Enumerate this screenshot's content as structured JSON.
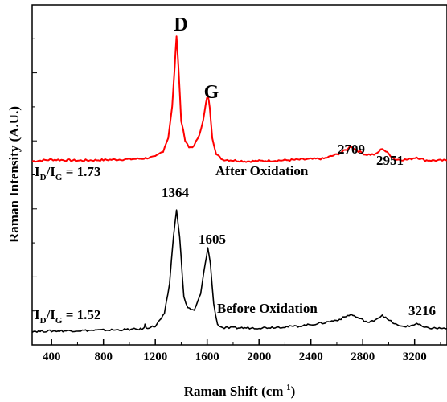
{
  "chart_data": {
    "type": "line",
    "xlabel": "Raman Shift (cm",
    "xlabel_sup": "-1",
    "xlabel_end": ")",
    "ylabel": "Raman Intensity (A.U.)",
    "xlim": [
      250,
      3450
    ],
    "ylim": [
      0,
      1
    ],
    "xticks": [
      400,
      800,
      1200,
      1600,
      2000,
      2400,
      2800,
      3200
    ],
    "series": [
      {
        "name": "After Oxidation",
        "color": "#ff0000",
        "baseline": 0.54,
        "points": [
          [
            250,
            0.54
          ],
          [
            400,
            0.545
          ],
          [
            600,
            0.542
          ],
          [
            800,
            0.544
          ],
          [
            1000,
            0.546
          ],
          [
            1100,
            0.548
          ],
          [
            1200,
            0.553
          ],
          [
            1260,
            0.57
          ],
          [
            1300,
            0.61
          ],
          [
            1330,
            0.7
          ],
          [
            1350,
            0.82
          ],
          [
            1364,
            0.91
          ],
          [
            1378,
            0.82
          ],
          [
            1400,
            0.66
          ],
          [
            1430,
            0.6
          ],
          [
            1460,
            0.58
          ],
          [
            1500,
            0.585
          ],
          [
            1540,
            0.62
          ],
          [
            1570,
            0.66
          ],
          [
            1590,
            0.71
          ],
          [
            1605,
            0.735
          ],
          [
            1620,
            0.7
          ],
          [
            1640,
            0.61
          ],
          [
            1670,
            0.56
          ],
          [
            1720,
            0.545
          ],
          [
            1900,
            0.54
          ],
          [
            2200,
            0.543
          ],
          [
            2500,
            0.548
          ],
          [
            2600,
            0.56
          ],
          [
            2680,
            0.575
          ],
          [
            2709,
            0.585
          ],
          [
            2740,
            0.575
          ],
          [
            2820,
            0.56
          ],
          [
            2900,
            0.56
          ],
          [
            2951,
            0.578
          ],
          [
            2990,
            0.565
          ],
          [
            3050,
            0.545
          ],
          [
            3150,
            0.545
          ],
          [
            3216,
            0.552
          ],
          [
            3280,
            0.543
          ],
          [
            3450,
            0.542
          ]
        ]
      },
      {
        "name": "Before Oxidation",
        "color": "#000000",
        "baseline": 0.04,
        "points": [
          [
            250,
            0.04
          ],
          [
            600,
            0.042
          ],
          [
            900,
            0.044
          ],
          [
            1050,
            0.046
          ],
          [
            1110,
            0.047
          ],
          [
            1120,
            0.06
          ],
          [
            1130,
            0.05
          ],
          [
            1200,
            0.055
          ],
          [
            1270,
            0.09
          ],
          [
            1310,
            0.18
          ],
          [
            1340,
            0.32
          ],
          [
            1364,
            0.395
          ],
          [
            1388,
            0.32
          ],
          [
            1420,
            0.14
          ],
          [
            1450,
            0.11
          ],
          [
            1500,
            0.1
          ],
          [
            1550,
            0.15
          ],
          [
            1585,
            0.24
          ],
          [
            1605,
            0.285
          ],
          [
            1625,
            0.24
          ],
          [
            1650,
            0.12
          ],
          [
            1680,
            0.06
          ],
          [
            1720,
            0.05
          ],
          [
            2000,
            0.05
          ],
          [
            2300,
            0.055
          ],
          [
            2500,
            0.065
          ],
          [
            2620,
            0.075
          ],
          [
            2709,
            0.09
          ],
          [
            2760,
            0.08
          ],
          [
            2850,
            0.065
          ],
          [
            2920,
            0.08
          ],
          [
            2951,
            0.088
          ],
          [
            2990,
            0.075
          ],
          [
            3080,
            0.055
          ],
          [
            3160,
            0.055
          ],
          [
            3216,
            0.063
          ],
          [
            3280,
            0.05
          ],
          [
            3450,
            0.048
          ]
        ]
      }
    ],
    "annotations": {
      "d_label": "D",
      "g_label": "G",
      "after_label": "After Oxidation",
      "before_label": "Before Oxidation",
      "after_ratio_main": "I",
      "after_ratio_sub1": "D",
      "after_ratio_mid": "/I",
      "after_ratio_sub2": "G",
      "after_ratio_val": " = 1.73",
      "before_ratio_main": "I",
      "before_ratio_sub1": "D",
      "before_ratio_mid": "/I",
      "before_ratio_sub2": "G",
      "before_ratio_val": " = 1.52",
      "peak_2709": "2709",
      "peak_2951": "2951",
      "peak_1364": "1364",
      "peak_1605": "1605",
      "peak_3216": "3216"
    }
  }
}
